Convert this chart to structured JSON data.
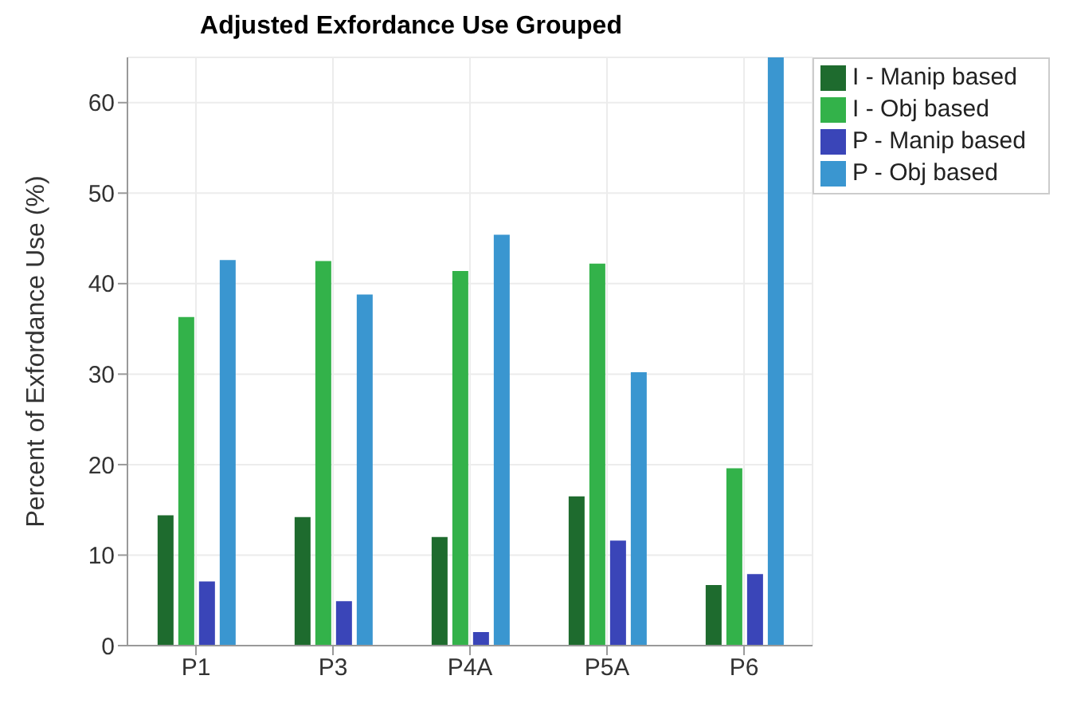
{
  "chart_data": {
    "type": "bar",
    "title": "Adjusted Exfordance Use Grouped",
    "ylabel": "Percent of Exfordance Use (%)",
    "categories": [
      "P1",
      "P3",
      "P4A",
      "P5A",
      "P6"
    ],
    "series": [
      {
        "name": "I - Manip based",
        "color": "#1e6b2e",
        "values": [
          14.4,
          14.2,
          12.0,
          16.5,
          6.7
        ]
      },
      {
        "name": "I - Obj based",
        "color": "#33b24a",
        "values": [
          36.3,
          42.5,
          41.4,
          42.2,
          19.6
        ]
      },
      {
        "name": "P - Manip based",
        "color": "#3a45b8",
        "values": [
          7.1,
          4.9,
          1.5,
          11.6,
          7.9
        ]
      },
      {
        "name": "P - Obj based",
        "color": "#3a96d0",
        "values": [
          42.6,
          38.8,
          45.4,
          30.2,
          65.0
        ]
      }
    ],
    "ylim": [
      0,
      65
    ],
    "yticks": [
      0,
      10,
      20,
      30,
      40,
      50,
      60
    ],
    "grid": true,
    "legend": "top right"
  }
}
